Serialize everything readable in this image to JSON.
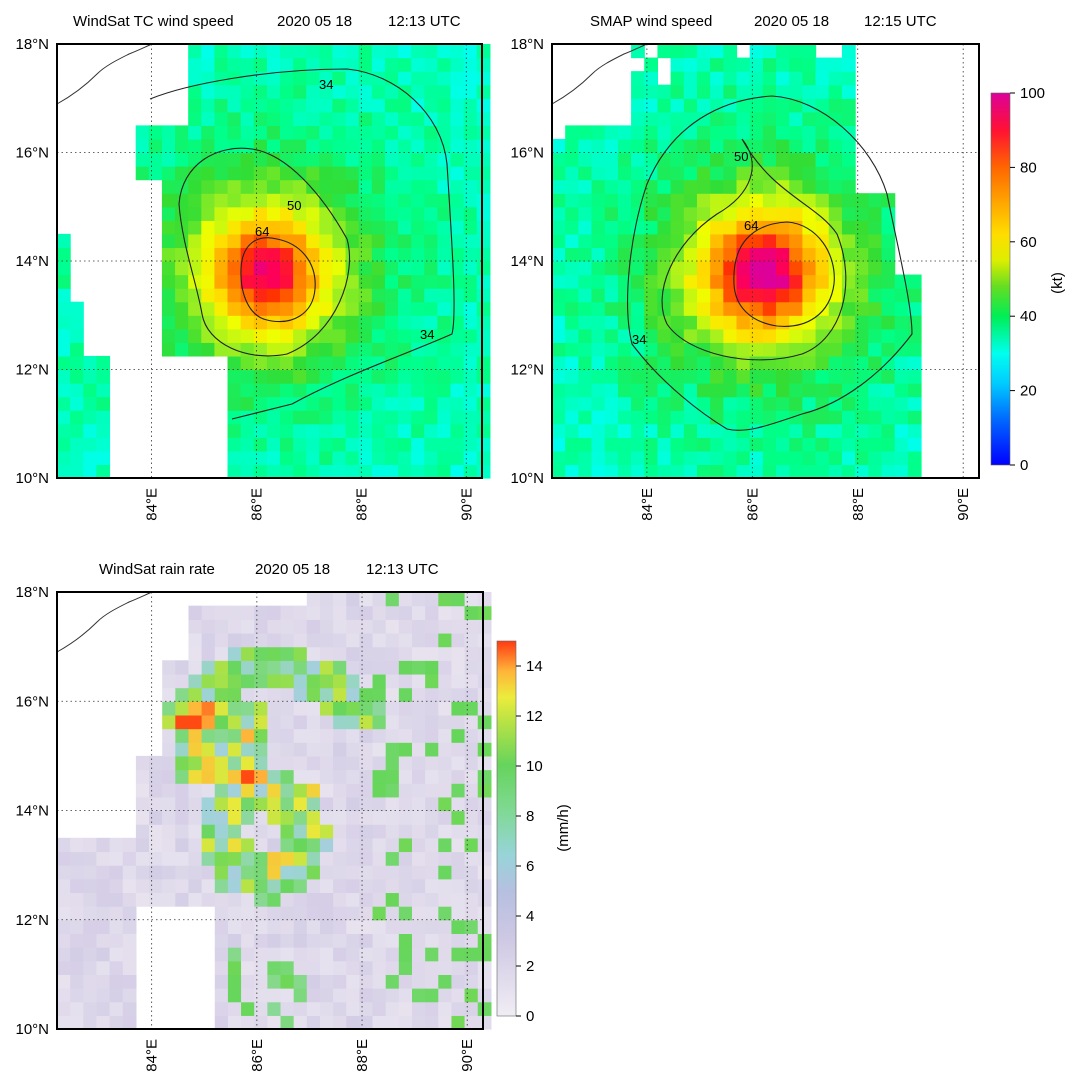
{
  "figure": {
    "panels": [
      {
        "title": "WindSat TC wind speed",
        "date": "2020  05  18",
        "time": "12:13 UTC"
      },
      {
        "title": "SMAP wind speed",
        "date": "2020  05  18",
        "time": "12:15 UTC"
      },
      {
        "title": "WindSat rain rate",
        "date": "2020  05  18",
        "time": "12:13 UTC"
      }
    ],
    "lat_tick_labels": [
      "10°N",
      "12°N",
      "14°N",
      "16°N",
      "18°N"
    ],
    "lon_tick_labels": [
      "84°E",
      "86°E",
      "88°E",
      "90°E"
    ],
    "wind_colorbar": {
      "label": "(kt)",
      "tick_labels": [
        "0",
        "20",
        "40",
        "60",
        "80",
        "100"
      ]
    },
    "rain_colorbar": {
      "label": "(mm/h)",
      "tick_labels": [
        "0",
        "2",
        "4",
        "6",
        "8",
        "10",
        "12",
        "14"
      ]
    }
  },
  "chart_data": [
    {
      "type": "heatmap",
      "title": "WindSat TC wind speed",
      "date": "2020 05 18",
      "time": "12:13 UTC",
      "units": "kt",
      "xlim": [
        82.2,
        90.3
      ],
      "ylim": [
        10,
        18
      ],
      "x_ticks": [
        84,
        86,
        88,
        90
      ],
      "y_ticks": [
        10,
        12,
        14,
        16,
        18
      ],
      "grid": true,
      "center": [
        86.2,
        13.8
      ],
      "max_wind_kt": 88,
      "contours_kt": [
        34,
        50,
        64
      ],
      "contour_labels": [
        "34",
        "50",
        "64",
        "34"
      ],
      "swath": "partial, western edge missing"
    },
    {
      "type": "heatmap",
      "title": "SMAP wind speed",
      "date": "2020 05 18",
      "time": "12:15 UTC",
      "units": "kt",
      "xlim": [
        82.2,
        90.3
      ],
      "ylim": [
        10,
        18
      ],
      "x_ticks": [
        84,
        86,
        88,
        90
      ],
      "y_ticks": [
        10,
        12,
        14,
        16,
        18
      ],
      "grid": true,
      "center": [
        86.2,
        13.8
      ],
      "max_wind_kt": 98,
      "contours_kt": [
        34,
        50,
        64
      ],
      "contour_labels": [
        "50",
        "64",
        "34"
      ],
      "swath": "eastern edge missing"
    },
    {
      "type": "heatmap",
      "title": "WindSat rain rate",
      "date": "2020 05 18",
      "time": "12:13 UTC",
      "units": "mm/h",
      "xlim": [
        82.2,
        90.3
      ],
      "ylim": [
        10,
        18
      ],
      "x_ticks": [
        84,
        86,
        88,
        90
      ],
      "y_ticks": [
        10,
        12,
        14,
        16,
        18
      ],
      "grid": true,
      "max_rain_mmh": 15,
      "rain_max_locations": [
        [
          85.0,
          15.0
        ],
        [
          86.0,
          15.5
        ],
        [
          85.7,
          13.7
        ]
      ]
    }
  ],
  "colors": {
    "wind_scale": [
      "#0000ff",
      "#0088ff",
      "#00ddff",
      "#00ffee",
      "#00ff88",
      "#33dd33",
      "#99ee22",
      "#eeff00",
      "#ffdd00",
      "#ffaa00",
      "#ff7700",
      "#ff3300",
      "#ff0055",
      "#dd0099"
    ],
    "rain_scale": [
      "#efebf2",
      "#d4cde6",
      "#b9c0e0",
      "#9fd3da",
      "#86d98a",
      "#66d65a",
      "#a6e14a",
      "#e9e93a",
      "#ffb53a",
      "#ff4a14"
    ],
    "ocean_missing": "#ffffff",
    "grid": "#333333",
    "coast": "#333333"
  }
}
